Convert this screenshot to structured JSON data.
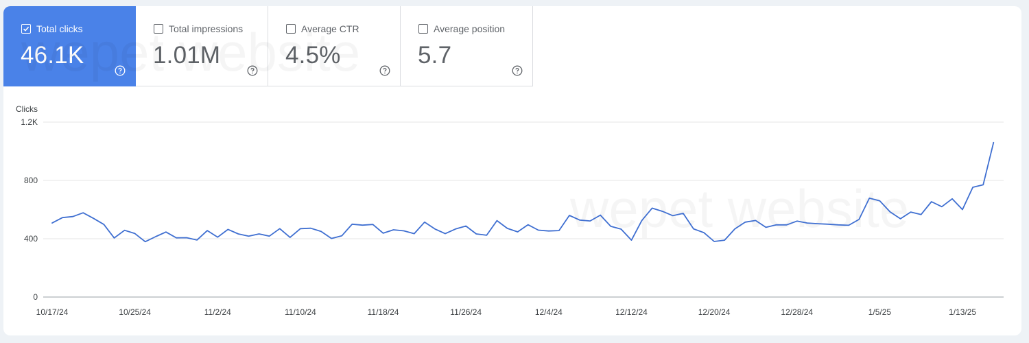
{
  "metrics": [
    {
      "label": "Total clicks",
      "value": "46.1K",
      "selected": true
    },
    {
      "label": "Total impressions",
      "value": "1.01M",
      "selected": false
    },
    {
      "label": "Average CTR",
      "value": "4.5%",
      "selected": false
    },
    {
      "label": "Average position",
      "value": "5.7",
      "selected": false
    }
  ],
  "colors": {
    "accent": "#4a82e8",
    "line": "#3f6fd1",
    "grid": "#e6e6e6"
  },
  "watermark": "wepet website",
  "chart_data": {
    "type": "line",
    "ylabel": "Clicks",
    "yticks": [
      "0",
      "400",
      "800",
      "1.2K"
    ],
    "ylim": [
      0,
      1200
    ],
    "xtick_labels": [
      "10/17/24",
      "10/25/24",
      "11/2/24",
      "11/10/24",
      "11/18/24",
      "11/26/24",
      "12/4/24",
      "12/12/24",
      "12/20/24",
      "12/28/24",
      "1/5/25",
      "1/13/25"
    ],
    "grid": true,
    "series": [
      {
        "values": [
          508,
          545,
          552,
          578,
          540,
          498,
          405,
          458,
          436,
          380,
          414,
          446,
          406,
          407,
          391,
          456,
          411,
          464,
          433,
          418,
          433,
          418,
          469,
          409,
          469,
          472,
          450,
          402,
          420,
          500,
          493,
          498,
          438,
          461,
          454,
          435,
          514,
          467,
          435,
          467,
          487,
          433,
          424,
          524,
          471,
          447,
          496,
          459,
          453,
          456,
          560,
          528,
          522,
          562,
          485,
          466,
          390,
          525,
          610,
          588,
          558,
          574,
          468,
          442,
          381,
          390,
          468,
          514,
          525,
          478,
          495,
          495,
          521,
          508,
          503,
          500,
          495,
          492,
          532,
          678,
          660,
          584,
          537,
          583,
          566,
          654,
          620,
          674,
          600,
          753,
          770,
          1060
        ]
      }
    ]
  }
}
